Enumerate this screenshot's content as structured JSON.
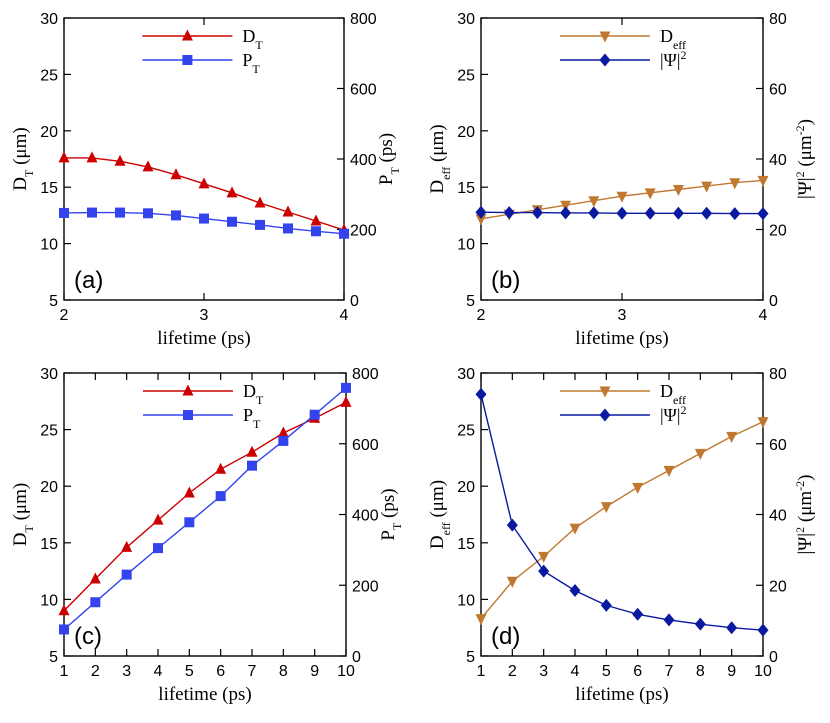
{
  "chart_data": [
    {
      "type": "line",
      "panel_label": "(a)",
      "xlabel": "lifetime (ps)",
      "xlim": [
        2,
        4
      ],
      "xticks": [
        2,
        3,
        4
      ],
      "ylim": [
        5,
        30
      ],
      "yticks": [
        5,
        10,
        15,
        20,
        25,
        30
      ],
      "y2lim": [
        0,
        800
      ],
      "y2ticks": [
        0,
        200,
        400,
        600,
        800
      ],
      "ylabel": {
        "main": "D",
        "sub": "T",
        "suffix": " (μm)"
      },
      "y2label": {
        "main": "P",
        "sub": "T",
        "suffix": " (ps)"
      },
      "legend_position": "top-center",
      "series": [
        {
          "name": "D",
          "sub": "T",
          "axis": "left",
          "color": "#cc0000",
          "marker": "triangle-up",
          "x": [
            2.0,
            2.2,
            2.4,
            2.6,
            2.8,
            3.0,
            3.2,
            3.4,
            3.6,
            3.8,
            4.0
          ],
          "y": [
            17.6,
            17.6,
            17.3,
            16.8,
            16.1,
            15.3,
            14.5,
            13.6,
            12.8,
            12.0,
            11.2
          ]
        },
        {
          "name": "P",
          "sub": "T",
          "axis": "right",
          "color": "#3344ee",
          "marker": "square",
          "x": [
            2.0,
            2.2,
            2.4,
            2.6,
            2.8,
            3.0,
            3.2,
            3.4,
            3.6,
            3.8,
            4.0
          ],
          "y": [
            247,
            248,
            248,
            246,
            240,
            231,
            222,
            213,
            203,
            195,
            188
          ]
        }
      ]
    },
    {
      "type": "line",
      "panel_label": "(b)",
      "xlabel": "lifetime (ps)",
      "xlim": [
        2,
        4
      ],
      "xticks": [
        2,
        3,
        4
      ],
      "ylim": [
        5,
        30
      ],
      "yticks": [
        5,
        10,
        15,
        20,
        25,
        30
      ],
      "y2lim": [
        0,
        80
      ],
      "y2ticks": [
        0,
        20,
        40,
        60,
        80
      ],
      "ylabel": {
        "main": "D",
        "sub": "eff",
        "suffix": " (μm)"
      },
      "y2label": {
        "main": "|Ψ|",
        "sup": "2",
        "suffix": " (μm",
        "suffix_sup": "-2",
        "suffix_end": ")"
      },
      "legend_position": "top-center",
      "series": [
        {
          "name": "D",
          "sub": "eff",
          "axis": "left",
          "color": "#c07830",
          "marker": "triangle-down",
          "x": [
            2.0,
            2.2,
            2.4,
            2.6,
            2.8,
            3.0,
            3.2,
            3.4,
            3.6,
            3.8,
            4.0
          ],
          "y": [
            12.2,
            12.6,
            13.0,
            13.4,
            13.8,
            14.2,
            14.5,
            14.8,
            15.1,
            15.4,
            15.6
          ]
        },
        {
          "name": "|Ψ|",
          "sup": "2",
          "axis": "right",
          "color": "#0a1aa0",
          "marker": "diamond",
          "x": [
            2.0,
            2.2,
            2.4,
            2.6,
            2.8,
            3.0,
            3.2,
            3.4,
            3.6,
            3.8,
            4.0
          ],
          "y": [
            24.9,
            24.8,
            24.8,
            24.7,
            24.7,
            24.6,
            24.6,
            24.6,
            24.6,
            24.5,
            24.5
          ]
        }
      ]
    },
    {
      "type": "line",
      "panel_label": "(c)",
      "xlabel": "lifetime (ps)",
      "xlim": [
        1,
        10
      ],
      "xticks": [
        1,
        2,
        3,
        4,
        5,
        6,
        7,
        8,
        9,
        10
      ],
      "ylim": [
        5,
        30
      ],
      "yticks": [
        5,
        10,
        15,
        20,
        25,
        30
      ],
      "y2lim": [
        0,
        800
      ],
      "y2ticks": [
        0,
        200,
        400,
        600,
        800
      ],
      "ylabel": {
        "main": "D",
        "sub": "T",
        "suffix": " (μm)"
      },
      "y2label": {
        "main": "P",
        "sub": "T",
        "suffix": " (ps)"
      },
      "legend_position": "top-center",
      "series": [
        {
          "name": "D",
          "sub": "T",
          "axis": "left",
          "color": "#cc0000",
          "marker": "triangle-up",
          "x": [
            1,
            2,
            3,
            4,
            5,
            6,
            7,
            8,
            9,
            10
          ],
          "y": [
            9.0,
            11.8,
            14.6,
            17.0,
            19.4,
            21.5,
            23.0,
            24.7,
            26.0,
            27.4
          ]
        },
        {
          "name": "P",
          "sub": "T",
          "axis": "right",
          "color": "#3344ee",
          "marker": "square",
          "x": [
            1,
            2,
            3,
            4,
            5,
            6,
            7,
            8,
            9,
            10
          ],
          "y": [
            75,
            152,
            230,
            305,
            378,
            452,
            538,
            608,
            682,
            758
          ]
        }
      ]
    },
    {
      "type": "line",
      "panel_label": "(d)",
      "xlabel": "lifetime (ps)",
      "xlim": [
        1,
        10
      ],
      "xticks": [
        1,
        2,
        3,
        4,
        5,
        6,
        7,
        8,
        9,
        10
      ],
      "ylim": [
        5,
        30
      ],
      "yticks": [
        5,
        10,
        15,
        20,
        25,
        30
      ],
      "y2lim": [
        0,
        80
      ],
      "y2ticks": [
        0,
        20,
        40,
        60,
        80
      ],
      "ylabel": {
        "main": "D",
        "sub": "eff",
        "suffix": " (μm)"
      },
      "y2label": {
        "main": "|Ψ|",
        "sup": "2",
        "suffix": " (μm",
        "suffix_sup": "-2",
        "suffix_end": ")"
      },
      "legend_position": "top-center",
      "series": [
        {
          "name": "D",
          "sub": "eff",
          "axis": "left",
          "color": "#c07830",
          "marker": "triangle-down",
          "x": [
            1,
            2,
            3,
            4,
            5,
            6,
            7,
            8,
            9,
            10
          ],
          "y": [
            8.3,
            11.6,
            13.8,
            16.3,
            18.2,
            19.9,
            21.4,
            22.9,
            24.4,
            25.7
          ]
        },
        {
          "name": "|Ψ|",
          "sup": "2",
          "axis": "right",
          "color": "#0a1aa0",
          "marker": "diamond",
          "x": [
            1,
            2,
            3,
            4,
            5,
            6,
            7,
            8,
            9,
            10
          ],
          "y": [
            74,
            37,
            24,
            18.5,
            14.3,
            11.8,
            10.2,
            9.0,
            8.0,
            7.3
          ]
        }
      ]
    }
  ]
}
